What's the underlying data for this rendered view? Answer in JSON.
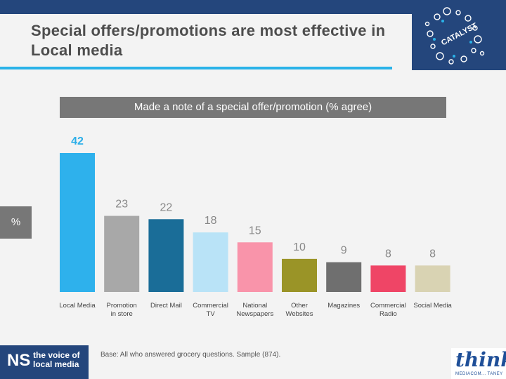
{
  "slide": {
    "title": "Special offers/promotions are most effective in Local media",
    "subtitle": "Made a note of a special offer/promotion (% agree)",
    "percent_label": "%",
    "base_note": "Base: All who answered grocery questions. Sample (874).",
    "ns_logo": {
      "mark": "NS",
      "tagline": "the voice of local media"
    },
    "think_logo": {
      "word": "think",
      "sub": "MEDIACOM... TANEY"
    },
    "catalyst_logo": {
      "text": "CATALYST"
    }
  },
  "chart_data": {
    "type": "bar",
    "title": "Made a note of a special offer/promotion (% agree)",
    "xlabel": "",
    "ylabel": "%",
    "ylim": [
      0,
      45
    ],
    "grid": false,
    "legend": "none",
    "categories": [
      "Local Media",
      "Promotion in store",
      "Direct Mail",
      "Commercial TV",
      "National Newspapers",
      "Other Websites",
      "Magazines",
      "Commercial Radio",
      "Social Media"
    ],
    "category_lines": [
      [
        "Local Media"
      ],
      [
        "Promotion",
        "in store"
      ],
      [
        "Direct Mail"
      ],
      [
        "Commercial",
        "TV"
      ],
      [
        "National",
        "Newspapers"
      ],
      [
        "Other",
        "Websites"
      ],
      [
        "Magazines"
      ],
      [
        "Commercial",
        "Radio"
      ],
      [
        "Social Media"
      ]
    ],
    "values": [
      42,
      23,
      22,
      18,
      15,
      10,
      9,
      8,
      8
    ],
    "colors": [
      "#2eb1ec",
      "#a8a8a8",
      "#1a6d98",
      "#b9e3f7",
      "#f994aa",
      "#9a9427",
      "#6f6f6f",
      "#ef4566",
      "#d9d3b3"
    ],
    "label_colors": [
      "#2aaee8",
      "#888888",
      "#888888",
      "#888888",
      "#888888",
      "#888888",
      "#888888",
      "#888888",
      "#888888"
    ]
  }
}
